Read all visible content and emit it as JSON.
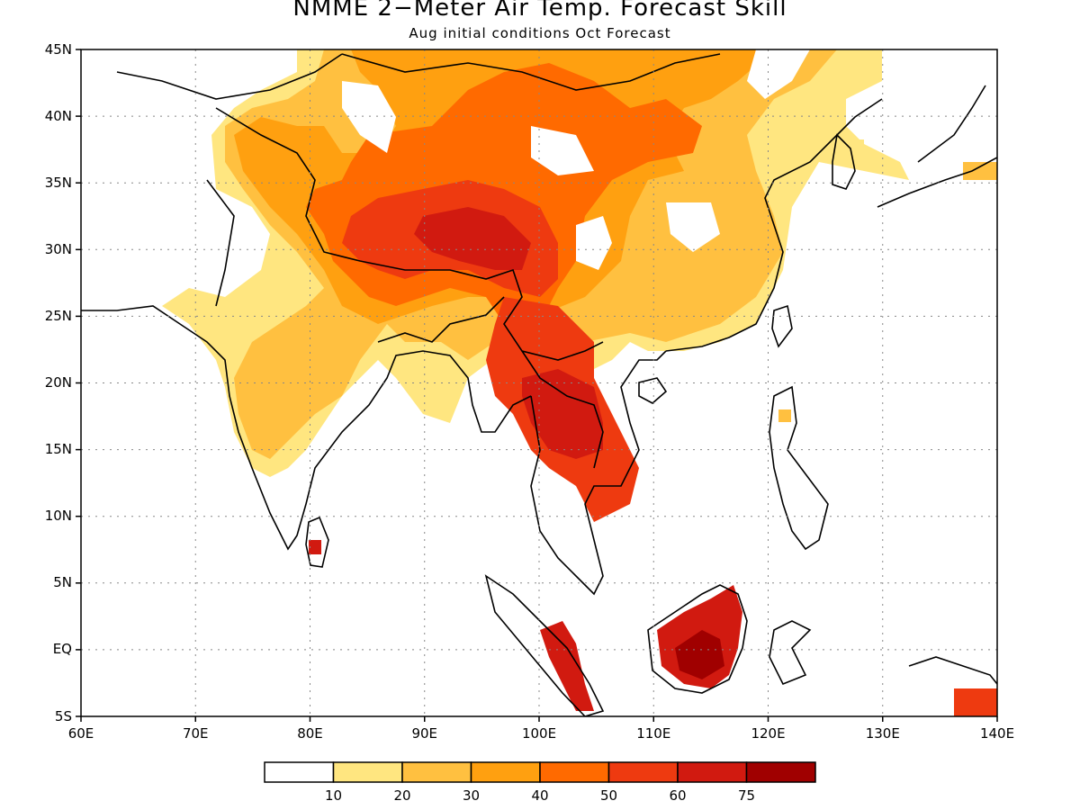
{
  "title": "NMME 2−Meter Air Temp. Forecast Skill",
  "subtitle": "Aug initial conditions  Oct Forecast",
  "map": {
    "lon_range": [
      60,
      140
    ],
    "lat_range": [
      -5,
      45
    ],
    "x_ticks": [
      "60E",
      "70E",
      "80E",
      "90E",
      "100E",
      "110E",
      "120E",
      "130E",
      "140E"
    ],
    "y_ticks": [
      "45N",
      "40N",
      "35N",
      "30N",
      "25N",
      "20N",
      "15N",
      "10N",
      "5N",
      "EQ",
      "5S"
    ],
    "gridlines": "dotted"
  },
  "legend": {
    "colors": [
      "#ffffff",
      "#ffe680",
      "#ffc040",
      "#ffa010",
      "#ff6a00",
      "#ee3a10",
      "#d11a10",
      "#a00000"
    ],
    "labels": [
      "10",
      "20",
      "30",
      "40",
      "50",
      "60",
      "75"
    ]
  }
}
